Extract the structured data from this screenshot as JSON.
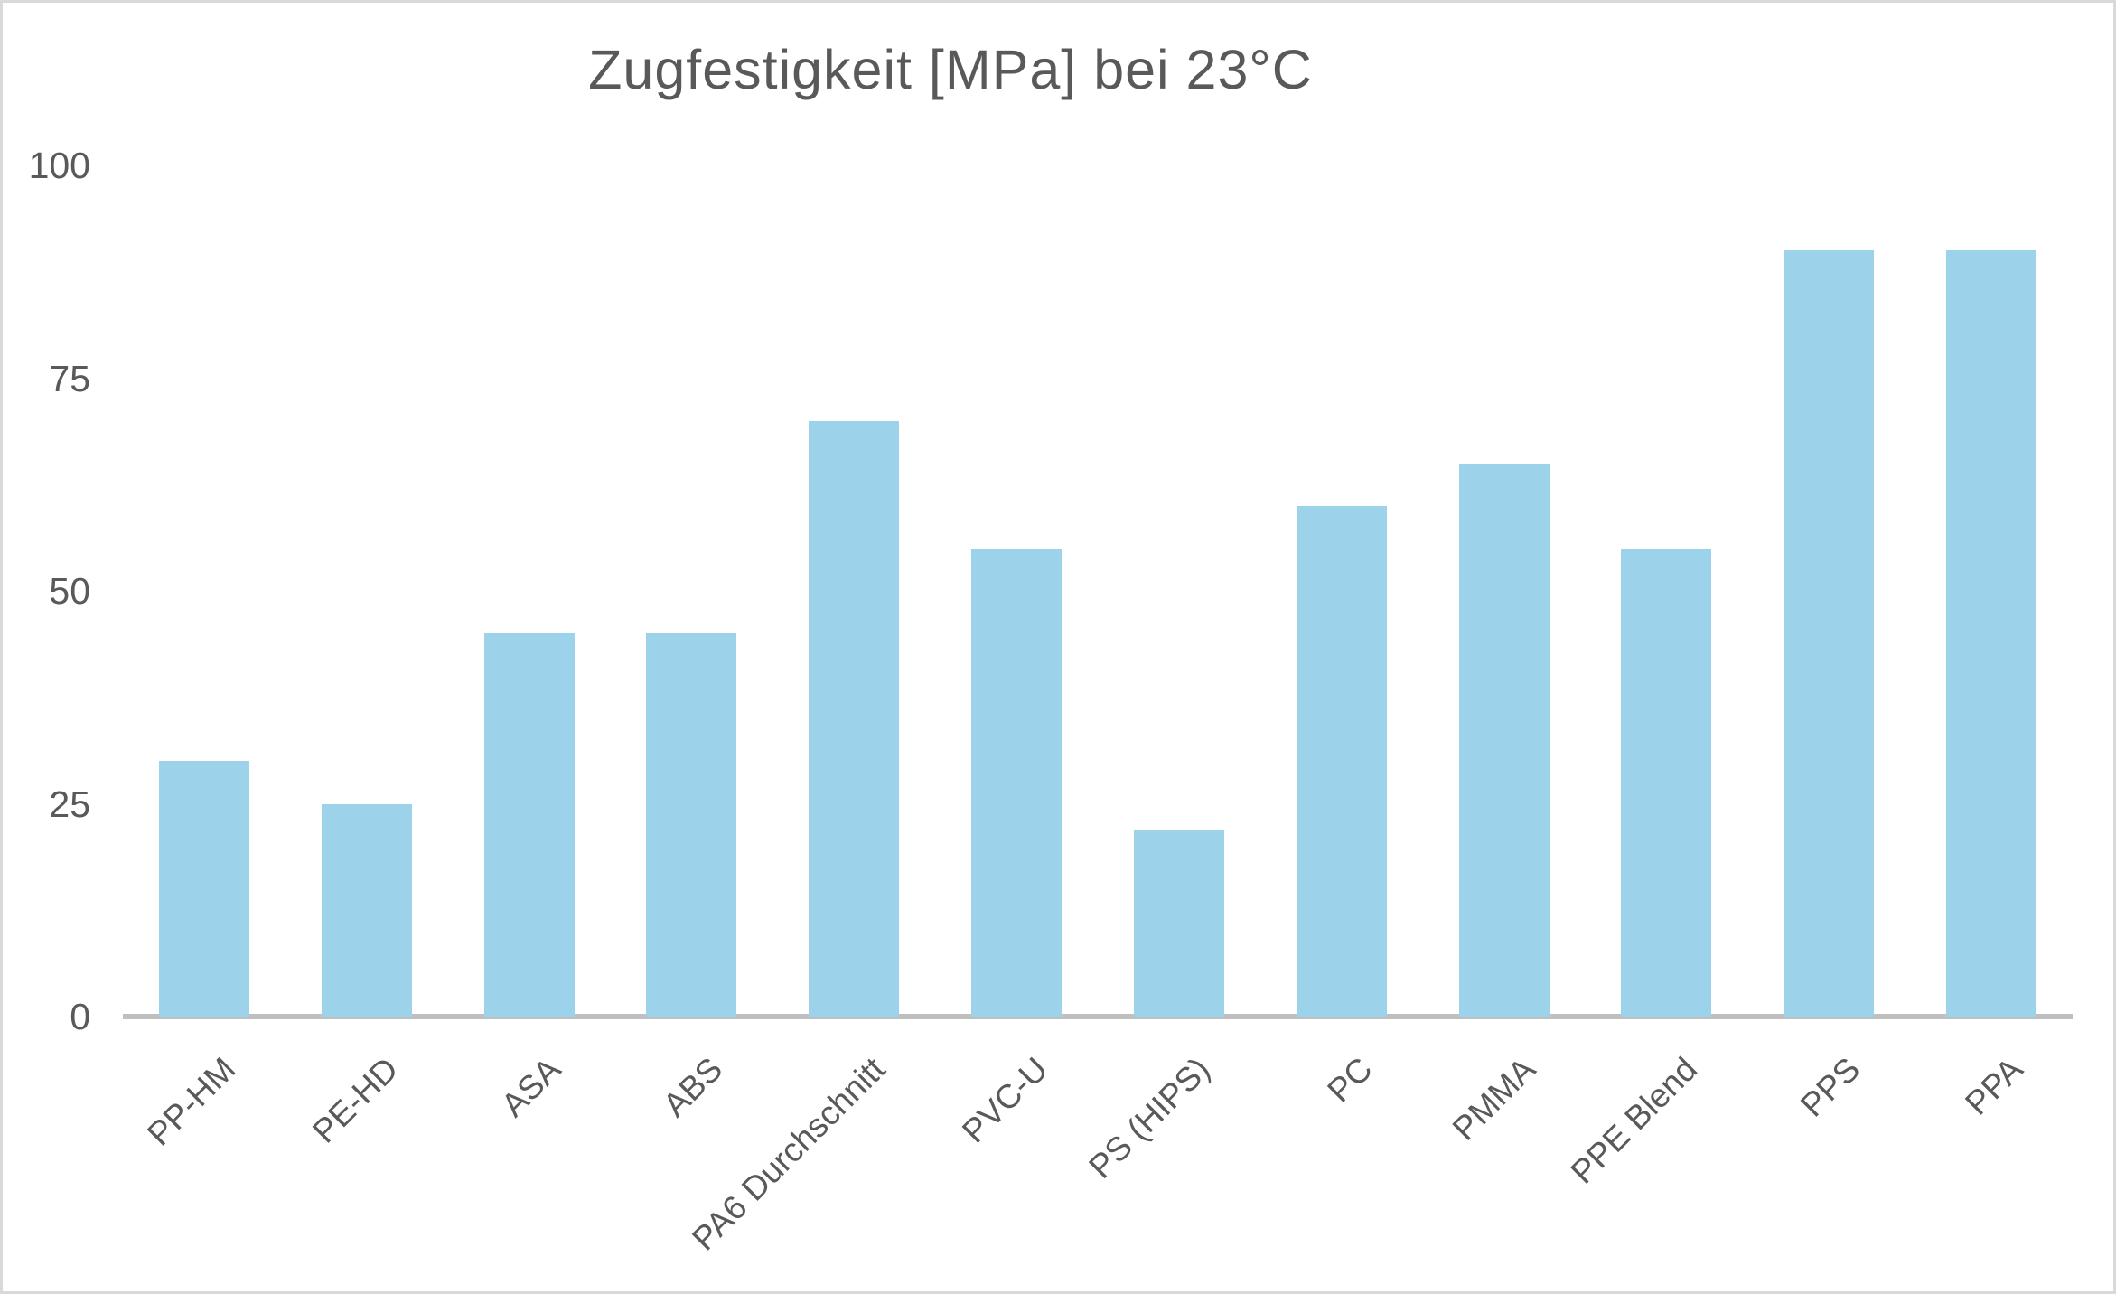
{
  "chart_data": {
    "type": "bar",
    "title": "Zugfestigkeit [MPa] bei 23°C",
    "categories": [
      "PP-HM",
      "PE-HD",
      "ASA",
      "ABS",
      "PA6 Durchschnitt",
      "PVC-U",
      "PS (HIPS)",
      "PC",
      "PMMA",
      "PPE Blend",
      "PPS",
      "PPA"
    ],
    "values": [
      30,
      25,
      45,
      45,
      70,
      55,
      22,
      60,
      65,
      55,
      90,
      90
    ],
    "xlabel": "",
    "ylabel": "",
    "ylim": [
      0,
      100
    ],
    "yticks": [
      0,
      25,
      50,
      75,
      100
    ],
    "grid": false,
    "legend": false,
    "bar_color": "#9dd2eb",
    "axis_line_color": "#bfbfbf",
    "text_color": "#595959",
    "background_color": "#ffffff"
  }
}
